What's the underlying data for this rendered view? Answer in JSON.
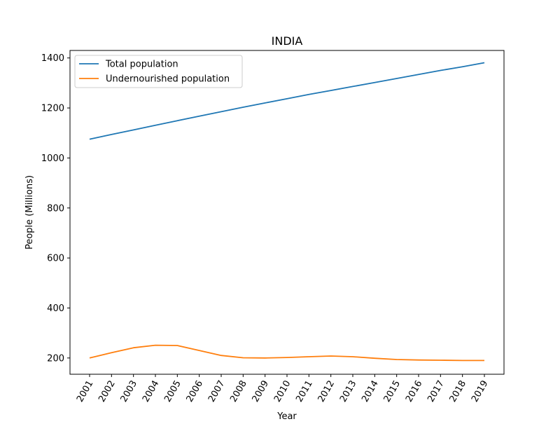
{
  "chart_data": {
    "type": "line",
    "title": "INDIA",
    "xlabel": "Year",
    "ylabel": "People (Millions)",
    "x": [
      "2001",
      "2002",
      "2003",
      "2004",
      "2005",
      "2006",
      "2007",
      "2008",
      "2009",
      "2010",
      "2011",
      "2012",
      "2013",
      "2014",
      "2015",
      "2016",
      "2017",
      "2018",
      "2019"
    ],
    "yticks": [
      200,
      400,
      600,
      800,
      1000,
      1200,
      1400
    ],
    "ylim": [
      135,
      1430
    ],
    "grid": false,
    "legend_position": "top-left",
    "series": [
      {
        "name": "Total population",
        "color": "#1f77b4",
        "values": [
          1075,
          1094,
          1112,
          1131,
          1149,
          1167,
          1185,
          1203,
          1220,
          1237,
          1254,
          1270,
          1286,
          1302,
          1318,
          1334,
          1350,
          1365,
          1381
        ]
      },
      {
        "name": "Undernourished population",
        "color": "#ff7f0e",
        "values": [
          200,
          221,
          241,
          251,
          250,
          230,
          210,
          201,
          200,
          202,
          205,
          208,
          205,
          199,
          194,
          192,
          191,
          190,
          190
        ]
      }
    ]
  }
}
